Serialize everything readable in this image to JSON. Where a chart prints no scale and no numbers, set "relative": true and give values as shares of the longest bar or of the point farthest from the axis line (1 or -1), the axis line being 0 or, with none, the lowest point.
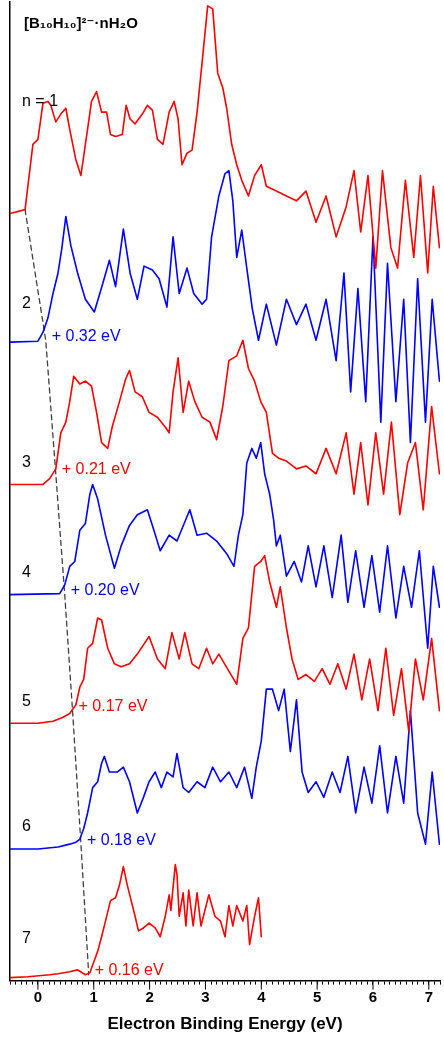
{
  "chart_data": {
    "type": "line",
    "title": "[B₁₀H₁₀]²⁻·nH₂O",
    "xlabel": "Electron Binding Energy (eV)",
    "relative": true,
    "xlim": [
      -0.5,
      7.2
    ],
    "xticks": [
      {
        "value": -0.5,
        "label": null
      },
      {
        "value": -0.4,
        "label": null
      },
      {
        "value": -0.3,
        "label": null
      },
      {
        "value": -0.2,
        "label": null
      },
      {
        "value": -0.1,
        "label": null
      },
      0,
      {
        "value": 0.1,
        "label": null
      },
      {
        "value": 0.2,
        "label": null
      },
      {
        "value": 0.3,
        "label": null
      },
      {
        "value": 0.4,
        "label": null
      },
      {
        "value": 0.5,
        "label": null
      },
      {
        "value": 0.6,
        "label": null
      },
      {
        "value": 0.7,
        "label": null
      },
      {
        "value": 0.8,
        "label": null
      },
      {
        "value": 0.9,
        "label": null
      },
      1,
      {
        "value": 1.1,
        "label": null
      },
      {
        "value": 1.2,
        "label": null
      },
      {
        "value": 1.3,
        "label": null
      },
      {
        "value": 1.4,
        "label": null
      },
      {
        "value": 1.5,
        "label": null
      },
      {
        "value": 1.6,
        "label": null
      },
      {
        "value": 1.7,
        "label": null
      },
      {
        "value": 1.8,
        "label": null
      },
      {
        "value": 1.9,
        "label": null
      },
      2,
      {
        "value": 2.1,
        "label": null
      },
      {
        "value": 2.2,
        "label": null
      },
      {
        "value": 2.3,
        "label": null
      },
      {
        "value": 2.4,
        "label": null
      },
      {
        "value": 2.5,
        "label": null
      },
      {
        "value": 2.6,
        "label": null
      },
      {
        "value": 2.7,
        "label": null
      },
      {
        "value": 2.8,
        "label": null
      },
      {
        "value": 2.9,
        "label": null
      },
      3,
      {
        "value": 3.1,
        "label": null
      },
      {
        "value": 3.2,
        "label": null
      },
      {
        "value": 3.3,
        "label": null
      },
      {
        "value": 3.4,
        "label": null
      },
      {
        "value": 3.5,
        "label": null
      },
      {
        "value": 3.6,
        "label": null
      },
      {
        "value": 3.7,
        "label": null
      },
      {
        "value": 3.8,
        "label": null
      },
      {
        "value": 3.9,
        "label": null
      },
      4,
      {
        "value": 4.1,
        "label": null
      },
      {
        "value": 4.2,
        "label": null
      },
      {
        "value": 4.3,
        "label": null
      },
      {
        "value": 4.4,
        "label": null
      },
      {
        "value": 4.5,
        "label": null
      },
      {
        "value": 4.6,
        "label": null
      },
      {
        "value": 4.7,
        "label": null
      },
      {
        "value": 4.8,
        "label": null
      },
      {
        "value": 4.9,
        "label": null
      },
      5,
      {
        "value": 5.1,
        "label": null
      },
      {
        "value": 5.2,
        "label": null
      },
      {
        "value": 5.3,
        "label": null
      },
      {
        "value": 5.4,
        "label": null
      },
      {
        "value": 5.5,
        "label": null
      },
      {
        "value": 5.6,
        "label": null
      },
      {
        "value": 5.7,
        "label": null
      },
      {
        "value": 5.8,
        "label": null
      },
      {
        "value": 5.9,
        "label": null
      },
      6,
      {
        "value": 6.1,
        "label": null
      },
      {
        "value": 6.2,
        "label": null
      },
      {
        "value": 6.3,
        "label": null
      },
      {
        "value": 6.4,
        "label": null
      },
      {
        "value": 6.5,
        "label": null
      },
      {
        "value": 6.6,
        "label": null
      },
      {
        "value": 6.7,
        "label": null
      },
      {
        "value": 6.8,
        "label": null
      },
      {
        "value": 6.9,
        "label": null
      },
      7,
      {
        "value": 7.1,
        "label": null
      },
      {
        "value": 7.2,
        "label": null
      }
    ],
    "series": [
      {
        "name": "n = 1",
        "color": "#ff0000",
        "x": [
          -0.5,
          -0.23,
          -0.09,
          0,
          0.09,
          0.18,
          0.23,
          0.32,
          0.41,
          0.5,
          0.57,
          0.68,
          0.77,
          0.85,
          0.96,
          1.05,
          1.14,
          1.23,
          1.3,
          1.39,
          1.51,
          1.58,
          1.65,
          1.74,
          1.87,
          1.96,
          2.05,
          2.14,
          2.24,
          2.35,
          2.44,
          2.51,
          2.58,
          2.67,
          2.76,
          2.85,
          2.94,
          3.04,
          3.13,
          3.22,
          3.31,
          3.38,
          3.47,
          3.56,
          3.65,
          3.77,
          3.88,
          4.0,
          4.09,
          4.27,
          4.45,
          4.63,
          4.8,
          4.98,
          5.16,
          5.34,
          5.52,
          5.66,
          5.78,
          5.91,
          6.05,
          6.17,
          6.32,
          6.44,
          6.58,
          6.73,
          6.85,
          6.98,
          7.08,
          7.19
        ],
        "values": [
          0.787,
          0.791,
          0.858,
          0.863,
          0.9,
          0.902,
          0.898,
          0.881,
          0.889,
          0.895,
          0.873,
          0.842,
          0.826,
          0.858,
          0.902,
          0.912,
          0.891,
          0.891,
          0.868,
          0.866,
          0.868,
          0.898,
          0.884,
          0.879,
          0.889,
          0.898,
          0.893,
          0.863,
          0.858,
          0.891,
          0.902,
          0.884,
          0.837,
          0.849,
          0.852,
          0.891,
          0.942,
          1,
          0.997,
          0.931,
          0.916,
          0.895,
          0.858,
          0.837,
          0.821,
          0.805,
          0.826,
          0.837,
          0.815,
          0.81,
          0.805,
          0.8,
          0.81,
          0.778,
          0.805,
          0.763,
          0.794,
          0.831,
          0.768,
          0.826,
          0.731,
          0.831,
          0.752,
          0.731,
          0.821,
          0.742,
          0.826,
          0.726,
          0.815,
          0.752
        ]
      },
      {
        "name": "2",
        "color": "#0000ff",
        "x": [
          -0.5,
          0,
          0.09,
          0.18,
          0.27,
          0.36,
          0.43,
          0.5,
          0.59,
          0.71,
          0.85,
          1.01,
          1.16,
          1.28,
          1.39,
          1.53,
          1.65,
          1.78,
          1.9,
          2.05,
          2.17,
          2.31,
          2.42,
          2.53,
          2.67,
          2.79,
          2.94,
          3.02,
          3.11,
          3.24,
          3.35,
          3.42,
          3.49,
          3.56,
          3.65,
          3.74,
          3.84,
          3.95,
          4.09,
          4.27,
          4.45,
          4.63,
          4.8,
          4.98,
          5.16,
          5.34,
          5.48,
          5.6,
          5.73,
          5.87,
          6.0,
          6.14,
          6.26,
          6.41,
          6.55,
          6.67,
          6.8,
          6.94,
          7.06,
          7.19
        ],
        "values": [
          0.655,
          0.656,
          0.665,
          0.68,
          0.705,
          0.726,
          0.752,
          0.784,
          0.754,
          0.726,
          0.699,
          0.686,
          0.715,
          0.739,
          0.712,
          0.771,
          0.726,
          0.699,
          0.733,
          0.729,
          0.72,
          0.691,
          0.763,
          0.705,
          0.731,
          0.705,
          0.694,
          0.699,
          0.763,
          0.805,
          0.828,
          0.831,
          0.8,
          0.742,
          0.77,
          0.731,
          0.689,
          0.657,
          0.694,
          0.652,
          0.699,
          0.673,
          0.694,
          0.657,
          0.699,
          0.636,
          0.726,
          0.604,
          0.71,
          0.594,
          0.763,
          0.573,
          0.736,
          0.594,
          0.699,
          0.552,
          0.72,
          0.573,
          0.699,
          0.615
        ]
      },
      {
        "name": "3",
        "color": "#ff0000",
        "x": [
          -0.5,
          0.09,
          0.21,
          0.32,
          0.41,
          0.5,
          0.57,
          0.64,
          0.75,
          0.85,
          0.96,
          1.05,
          1.14,
          1.25,
          1.33,
          1.46,
          1.57,
          1.64,
          1.74,
          1.87,
          1.99,
          2.14,
          2.28,
          2.35,
          2.42,
          2.51,
          2.6,
          2.7,
          2.81,
          2.94,
          3.08,
          3.2,
          3.31,
          3.42,
          3.56,
          3.67,
          3.77,
          3.88,
          3.99,
          4.09,
          4.2,
          4.31,
          4.45,
          4.63,
          4.8,
          4.98,
          5.16,
          5.34,
          5.52,
          5.66,
          5.78,
          5.91,
          6.05,
          6.19,
          6.33,
          6.48,
          6.62,
          6.76,
          6.9,
          7.05,
          7.19
        ],
        "values": [
          0.509,
          0.509,
          0.515,
          0.525,
          0.562,
          0.573,
          0.594,
          0.62,
          0.612,
          0.615,
          0.61,
          0.583,
          0.552,
          0.546,
          0.568,
          0.594,
          0.617,
          0.626,
          0.604,
          0.599,
          0.583,
          0.578,
          0.568,
          0.562,
          0.604,
          0.639,
          0.583,
          0.615,
          0.594,
          0.578,
          0.573,
          0.555,
          0.589,
          0.636,
          0.641,
          0.657,
          0.628,
          0.615,
          0.594,
          0.583,
          0.541,
          0.536,
          0.533,
          0.525,
          0.528,
          0.52,
          0.546,
          0.52,
          0.562,
          0.499,
          0.552,
          0.488,
          0.562,
          0.499,
          0.573,
          0.478,
          0.531,
          0.552,
          0.483,
          0.589,
          0.52
        ]
      },
      {
        "name": "4",
        "color": "#0000ff",
        "x": [
          -0.5,
          0.39,
          0.48,
          0.57,
          0.66,
          0.75,
          0.85,
          0.93,
          0.98,
          1.07,
          1.21,
          1.37,
          1.49,
          1.64,
          1.78,
          1.96,
          2.05,
          2.19,
          2.35,
          2.49,
          2.72,
          2.85,
          3.02,
          3.2,
          3.38,
          3.51,
          3.59,
          3.67,
          3.74,
          3.83,
          3.91,
          3.99,
          4.06,
          4.15,
          4.22,
          4.27,
          4.34,
          4.45,
          4.59,
          4.72,
          4.84,
          4.98,
          5.12,
          5.27,
          5.43,
          5.55,
          5.69,
          5.84,
          5.98,
          6.12,
          6.26,
          6.41,
          6.55,
          6.69,
          6.83,
          6.98,
          7.08,
          7.19
        ],
        "values": [
          0.396,
          0.397,
          0.406,
          0.425,
          0.43,
          0.462,
          0.469,
          0.499,
          0.509,
          0.494,
          0.457,
          0.423,
          0.446,
          0.467,
          0.478,
          0.483,
          0.467,
          0.441,
          0.457,
          0.451,
          0.483,
          0.457,
          0.459,
          0.451,
          0.438,
          0.425,
          0.457,
          0.478,
          0.531,
          0.546,
          0.536,
          0.552,
          0.52,
          0.499,
          0.473,
          0.446,
          0.457,
          0.415,
          0.43,
          0.409,
          0.446,
          0.404,
          0.446,
          0.393,
          0.457,
          0.388,
          0.441,
          0.383,
          0.436,
          0.378,
          0.446,
          0.372,
          0.425,
          0.383,
          0.441,
          0.341,
          0.425,
          0.383
        ]
      },
      {
        "name": "5",
        "color": "#ff0000",
        "x": [
          -0.5,
          0,
          0.27,
          0.44,
          0.57,
          0.68,
          0.75,
          0.82,
          0.89,
          0.98,
          1.07,
          1.14,
          1.25,
          1.37,
          1.49,
          1.64,
          1.78,
          1.99,
          2.14,
          2.28,
          2.4,
          2.53,
          2.63,
          2.76,
          2.88,
          3.02,
          3.13,
          3.24,
          3.56,
          3.67,
          3.77,
          3.88,
          3.99,
          4.06,
          4.15,
          4.27,
          4.34,
          4.45,
          4.55,
          4.66,
          4.8,
          4.95,
          5.09,
          5.23,
          5.37,
          5.52,
          5.66,
          5.8,
          5.94,
          6.09,
          6.23,
          6.37,
          6.51,
          6.64,
          6.76,
          6.9,
          7.05,
          7.19
        ],
        "values": [
          0.264,
          0.264,
          0.266,
          0.27,
          0.274,
          0.283,
          0.301,
          0.309,
          0.341,
          0.346,
          0.372,
          0.37,
          0.341,
          0.325,
          0.322,
          0.325,
          0.335,
          0.353,
          0.33,
          0.32,
          0.357,
          0.33,
          0.357,
          0.325,
          0.32,
          0.341,
          0.325,
          0.335,
          0.304,
          0.351,
          0.362,
          0.425,
          0.43,
          0.436,
          0.409,
          0.383,
          0.404,
          0.362,
          0.33,
          0.309,
          0.314,
          0.307,
          0.32,
          0.304,
          0.325,
          0.299,
          0.335,
          0.288,
          0.33,
          0.277,
          0.341,
          0.272,
          0.32,
          0.256,
          0.33,
          0.288,
          0.351,
          0.277
        ]
      },
      {
        "name": "6",
        "color": "#0000ff",
        "x": [
          -0.5,
          0,
          0.36,
          0.57,
          0.68,
          0.75,
          0.82,
          0.89,
          0.98,
          1.07,
          1.14,
          1.19,
          1.28,
          1.42,
          1.53,
          1.64,
          1.78,
          1.89,
          1.99,
          2.1,
          2.21,
          2.31,
          2.42,
          2.49,
          2.6,
          2.7,
          2.85,
          2.99,
          3.13,
          3.27,
          3.42,
          3.56,
          3.7,
          3.83,
          3.91,
          4.0,
          4.09,
          4.2,
          4.31,
          4.41,
          4.52,
          4.63,
          4.73,
          4.84,
          4.98,
          5.12,
          5.27,
          5.41,
          5.55,
          5.69,
          5.84,
          5.98,
          6.12,
          6.26,
          6.41,
          6.55,
          6.67,
          6.8,
          6.94,
          7.06,
          7.19
        ],
        "values": [
          0.135,
          0.135,
          0.137,
          0.14,
          0.142,
          0.145,
          0.156,
          0.172,
          0.198,
          0.204,
          0.223,
          0.23,
          0.214,
          0.214,
          0.219,
          0.204,
          0.172,
          0.188,
          0.204,
          0.214,
          0.198,
          0.214,
          0.209,
          0.233,
          0.198,
          0.193,
          0.204,
          0.198,
          0.219,
          0.204,
          0.214,
          0.198,
          0.219,
          0.187,
          0.219,
          0.246,
          0.299,
          0.299,
          0.277,
          0.299,
          0.235,
          0.288,
          0.214,
          0.193,
          0.204,
          0.188,
          0.214,
          0.193,
          0.23,
          0.172,
          0.219,
          0.182,
          0.241,
          0.172,
          0.23,
          0.182,
          0.277,
          0.172,
          0.14,
          0.214,
          0.14
        ]
      },
      {
        "name": "7",
        "color": "#ff0000",
        "x": [
          -0.5,
          -0.18,
          0.21,
          0.36,
          0.57,
          0.71,
          0.85,
          0.93,
          1.0,
          1.07,
          1.14,
          1.21,
          1.3,
          1.39,
          1.46,
          1.53,
          1.6,
          1.67,
          1.74,
          1.8,
          1.89,
          1.99,
          2.1,
          2.19,
          2.28,
          2.35,
          2.38,
          2.46,
          2.49,
          2.53,
          2.6,
          2.65,
          2.7,
          2.78,
          2.85,
          2.92,
          3.06,
          3.17,
          3.27,
          3.35,
          3.42,
          3.49,
          3.56,
          3.67,
          3.74,
          3.79,
          3.88,
          3.95,
          4.0
        ],
        "values": [
          0.003,
          0.004,
          0.006,
          0.007,
          0.009,
          0.011,
          0.006,
          0.008,
          0.019,
          0.03,
          0.045,
          0.061,
          0.082,
          0.085,
          0.098,
          0.117,
          0.098,
          0.082,
          0.066,
          0.051,
          0.054,
          0.059,
          0.054,
          0.045,
          0.066,
          0.088,
          0.072,
          0.119,
          0.109,
          0.066,
          0.09,
          0.056,
          0.093,
          0.056,
          0.09,
          0.056,
          0.088,
          0.066,
          0.061,
          0.045,
          0.077,
          0.056,
          0.077,
          0.061,
          0.077,
          0.037,
          0.066,
          0.085,
          0.045
        ]
      },
      {
        "color": "#404040",
        "line_style": "dashed",
        "x": [
          -0.23,
          0.14,
          0.32,
          0.48,
          0.62,
          0.77,
          0.91
        ],
        "values": [
          0.791,
          0.657,
          0.52,
          0.396,
          0.277,
          0.14,
          0.006
        ]
      }
    ],
    "annotations": [
      "+ 0.32 eV",
      "+ 0.21 eV",
      "+ 0.20 eV",
      "+ 0.17 eV",
      "+ 0.18 eV",
      "+ 0.16 eV"
    ]
  }
}
